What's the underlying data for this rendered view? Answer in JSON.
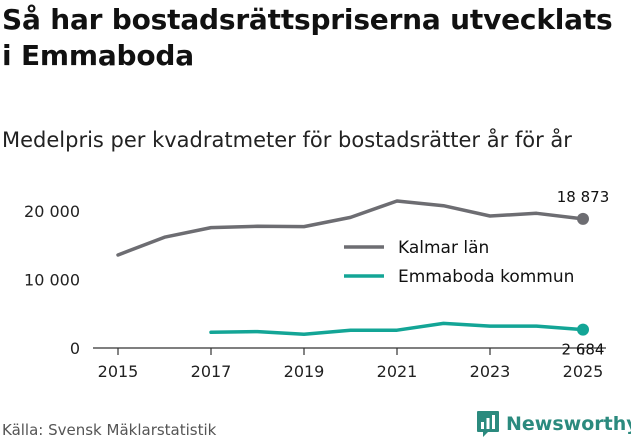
{
  "title": "Så har bostadsrättspriserna utvecklats i Emmaboda",
  "subtitle": "Medelpris per kvadratmeter för bostadsrätter år för år",
  "source": "Källa: Svensk Mäklarstatistik",
  "brand": "Newsworthy",
  "colors": {
    "kalmar": "#6d6d72",
    "emmaboda": "#13a596",
    "axis": "#333333",
    "text": "#111111",
    "brand": "#2b8a7e"
  },
  "chart_data": {
    "type": "line",
    "title": "Så har bostadsrättspriserna utvecklats i Emmaboda",
    "subtitle": "Medelpris per kvadratmeter för bostadsrätter år för år",
    "xlabel": "",
    "ylabel": "",
    "xlim": [
      2015,
      2025
    ],
    "ylim": [
      0,
      22000
    ],
    "grid": false,
    "legend_position": "right",
    "x_ticks": [
      2015,
      2017,
      2019,
      2021,
      2023,
      2025
    ],
    "x_tick_labels": [
      "2015",
      "2017",
      "2019",
      "2021",
      "2023",
      "2025"
    ],
    "y_ticks": [
      0,
      10000,
      20000
    ],
    "y_tick_labels": [
      "0",
      "10 000",
      "20 000"
    ],
    "series": [
      {
        "name": "Kalmar län",
        "color": "#6d6d72",
        "x": [
          2015,
          2016,
          2017,
          2018,
          2019,
          2020,
          2021,
          2022,
          2023,
          2024,
          2025
        ],
        "values": [
          13600,
          16200,
          17600,
          17800,
          17750,
          19100,
          21500,
          20800,
          19300,
          19700,
          18873
        ],
        "end_label": "18 873"
      },
      {
        "name": "Emmaboda kommun",
        "color": "#13a596",
        "x": [
          2017,
          2018,
          2019,
          2020,
          2021,
          2022,
          2023,
          2024,
          2025
        ],
        "values": [
          2300,
          2400,
          2000,
          2600,
          2600,
          3600,
          3200,
          3200,
          2684
        ],
        "end_label": "2 684"
      }
    ]
  }
}
